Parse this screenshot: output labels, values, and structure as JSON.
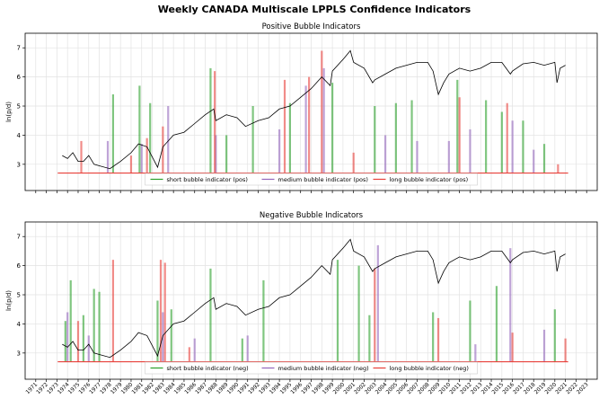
{
  "title": "Weekly CANADA Multiscale LPPLS Confidence Indicators",
  "chart_data": [
    {
      "type": "line",
      "title": "Positive Bubble Indicators",
      "ylabel": "ln(p/d)",
      "xlim": [
        1970,
        2024
      ],
      "ylim": [
        2.1,
        7.5
      ],
      "yticks": [
        3,
        4,
        5,
        6,
        7
      ],
      "xticks": [
        1971,
        1972,
        1973,
        1974,
        1975,
        1976,
        1977,
        1978,
        1979,
        1980,
        1981,
        1982,
        1983,
        1984,
        1985,
        1986,
        1987,
        1988,
        1989,
        1990,
        1991,
        1992,
        1993,
        1994,
        1995,
        1996,
        1997,
        1998,
        1999,
        2000,
        2001,
        2002,
        2003,
        2004,
        2005,
        2006,
        2007,
        2008,
        2009,
        2010,
        2011,
        2012,
        2013,
        2014,
        2015,
        2016,
        2017,
        2018,
        2019,
        2020,
        2021,
        2022,
        2023
      ],
      "xtick_labels": false,
      "grid": true,
      "baseline": 2.7,
      "baseline_color": "#e8403a",
      "price": {
        "color": "#000000",
        "x": [
          1973.5,
          1974,
          1974.5,
          1975,
          1975.5,
          1976,
          1976.5,
          1977,
          1978,
          1979,
          1980,
          1980.7,
          1981.5,
          1982.5,
          1983,
          1984,
          1985,
          1986,
          1987,
          1987.8,
          1988,
          1989,
          1990,
          1990.8,
          1992,
          1993,
          1994,
          1995,
          1996,
          1997,
          1998,
          1998.8,
          1999,
          2000,
          2000.7,
          2001,
          2002,
          2002.8,
          2003,
          2004,
          2005,
          2006,
          2007,
          2008,
          2008.5,
          2009,
          2009.5,
          2010,
          2011,
          2012,
          2013,
          2014,
          2015,
          2015.8,
          2016,
          2017,
          2018,
          2019,
          2020,
          2020.2,
          2020.5,
          2021
        ],
        "values": [
          3.3,
          3.2,
          3.4,
          3.1,
          3.1,
          3.3,
          3.0,
          2.95,
          2.85,
          3.1,
          3.4,
          3.7,
          3.6,
          2.9,
          3.6,
          4.0,
          4.1,
          4.4,
          4.7,
          4.9,
          4.5,
          4.7,
          4.6,
          4.3,
          4.5,
          4.6,
          4.9,
          5.0,
          5.3,
          5.6,
          6.0,
          5.7,
          6.2,
          6.6,
          6.9,
          6.5,
          6.3,
          5.8,
          5.9,
          6.1,
          6.3,
          6.4,
          6.5,
          6.5,
          6.2,
          5.4,
          5.8,
          6.1,
          6.3,
          6.2,
          6.3,
          6.5,
          6.5,
          6.1,
          6.2,
          6.45,
          6.5,
          6.4,
          6.5,
          5.8,
          6.3,
          6.4
        ]
      },
      "series": [
        {
          "name": "short bubble indicator (pos)",
          "color": "#2ca02c",
          "x": [
            1978.3,
            1980.8,
            1981.8,
            1987.5,
            1989,
            1991.5,
            1995,
            1999,
            2003,
            2005,
            2006.5,
            2010.8,
            2013.5,
            2015,
            2017,
            2019
          ],
          "values": [
            5.4,
            5.7,
            5.1,
            6.3,
            4.0,
            5.0,
            5.1,
            5.8,
            5.0,
            5.1,
            5.2,
            5.9,
            5.2,
            4.8,
            4.5,
            3.7
          ]
        },
        {
          "name": "medium bubble indicator (pos)",
          "color": "#9467bd",
          "x": [
            1977.8,
            1981,
            1983.5,
            1988,
            1994,
            1996.5,
            1998.2,
            2004,
            2007,
            2010,
            2012,
            2016,
            2018
          ],
          "values": [
            3.8,
            3.7,
            5.0,
            4.0,
            4.2,
            5.7,
            6.3,
            4.0,
            3.8,
            3.8,
            4.2,
            4.5,
            3.5
          ]
        },
        {
          "name": "long bubble indicator (pos)",
          "color": "#e8403a",
          "x": [
            1975.3,
            1980,
            1981.5,
            1983,
            1987.9,
            1994.5,
            1996.8,
            1998,
            2001,
            2011,
            2015.5,
            2020.3
          ],
          "values": [
            3.8,
            3.3,
            3.9,
            4.3,
            6.2,
            5.9,
            6.0,
            6.9,
            3.4,
            5.3,
            5.1,
            3.0
          ]
        }
      ]
    },
    {
      "type": "line",
      "title": "Negative Bubble Indicators",
      "ylabel": "ln(p/d)",
      "xlim": [
        1970,
        2024
      ],
      "ylim": [
        2.1,
        7.5
      ],
      "yticks": [
        3,
        4,
        5,
        6,
        7
      ],
      "xticks": [
        1971,
        1972,
        1973,
        1974,
        1975,
        1976,
        1977,
        1978,
        1979,
        1980,
        1981,
        1982,
        1983,
        1984,
        1985,
        1986,
        1987,
        1988,
        1989,
        1990,
        1991,
        1992,
        1993,
        1994,
        1995,
        1996,
        1997,
        1998,
        1999,
        2000,
        2001,
        2002,
        2003,
        2004,
        2005,
        2006,
        2007,
        2008,
        2009,
        2010,
        2011,
        2012,
        2013,
        2014,
        2015,
        2016,
        2017,
        2018,
        2019,
        2020,
        2021,
        2022,
        2023
      ],
      "xtick_labels": true,
      "grid": true,
      "baseline": 2.7,
      "baseline_color": "#e8403a",
      "price": {
        "color": "#000000",
        "x": [
          1973.5,
          1974,
          1974.5,
          1975,
          1975.5,
          1976,
          1976.5,
          1977,
          1978,
          1979,
          1980,
          1980.7,
          1981.5,
          1982.5,
          1983,
          1984,
          1985,
          1986,
          1987,
          1987.8,
          1988,
          1989,
          1990,
          1990.8,
          1992,
          1993,
          1994,
          1995,
          1996,
          1997,
          1998,
          1998.8,
          1999,
          2000,
          2000.7,
          2001,
          2002,
          2002.8,
          2003,
          2004,
          2005,
          2006,
          2007,
          2008,
          2008.5,
          2009,
          2009.5,
          2010,
          2011,
          2012,
          2013,
          2014,
          2015,
          2015.8,
          2016,
          2017,
          2018,
          2019,
          2020,
          2020.2,
          2020.5,
          2021
        ],
        "values": [
          3.3,
          3.2,
          3.4,
          3.1,
          3.1,
          3.3,
          3.0,
          2.95,
          2.85,
          3.1,
          3.4,
          3.7,
          3.6,
          2.9,
          3.6,
          4.0,
          4.1,
          4.4,
          4.7,
          4.9,
          4.5,
          4.7,
          4.6,
          4.3,
          4.5,
          4.6,
          4.9,
          5.0,
          5.3,
          5.6,
          6.0,
          5.7,
          6.2,
          6.6,
          6.9,
          6.5,
          6.3,
          5.8,
          5.9,
          6.1,
          6.3,
          6.4,
          6.5,
          6.5,
          6.2,
          5.4,
          5.8,
          6.1,
          6.3,
          6.2,
          6.3,
          6.5,
          6.5,
          6.1,
          6.2,
          6.45,
          6.5,
          6.4,
          6.5,
          5.8,
          6.3,
          6.4
        ]
      },
      "series": [
        {
          "name": "short bubble indicator (neg)",
          "color": "#2ca02c",
          "x": [
            1973.8,
            1974.3,
            1975.5,
            1976.5,
            1977,
            1982.5,
            1983.8,
            1987.5,
            1990.5,
            1992.5,
            1999.5,
            2001.5,
            2002.5,
            2008.5,
            2012,
            2014.5,
            2020
          ],
          "values": [
            4.1,
            5.5,
            4.3,
            5.2,
            5.1,
            4.8,
            4.5,
            5.9,
            3.5,
            5.5,
            6.2,
            6.0,
            4.3,
            4.4,
            4.8,
            5.3,
            4.5
          ]
        },
        {
          "name": "medium bubble indicator (neg)",
          "color": "#9467bd",
          "x": [
            1974,
            1976,
            1983,
            1986,
            1991,
            2003.3,
            2012.5,
            2015.8,
            2019
          ],
          "values": [
            4.4,
            3.6,
            4.4,
            3.5,
            3.6,
            6.7,
            3.3,
            6.6,
            3.8
          ]
        },
        {
          "name": "long bubble indicator (neg)",
          "color": "#e8403a",
          "x": [
            1975,
            1978.3,
            1982.8,
            1983.2,
            1985.5,
            2003,
            2009,
            2016,
            2021
          ],
          "values": [
            4.1,
            6.2,
            6.2,
            6.1,
            3.2,
            5.9,
            4.2,
            3.7,
            3.5
          ]
        }
      ]
    }
  ]
}
